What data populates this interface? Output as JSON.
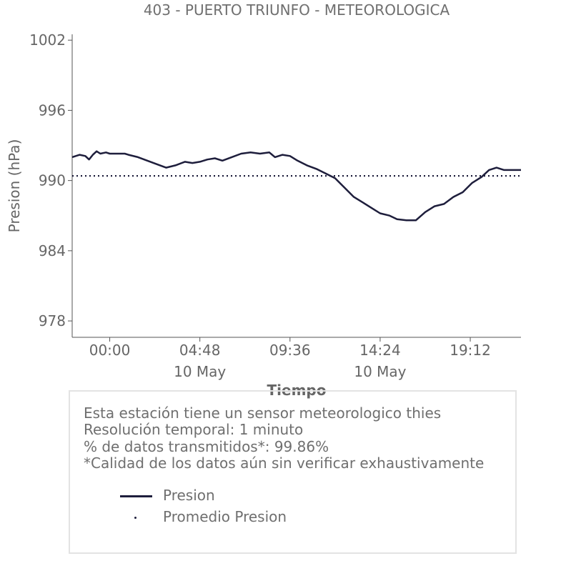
{
  "title": "403 - PUERTO TRIUNFO - METEOROLOGICA",
  "info": {
    "line1": "Esta estación tiene un sensor meteorologico thies",
    "line2": "Resolución temporal: 1 minuto",
    "line3": "% de datos transmitidos*: 99.86%",
    "line4": "*Calidad de los datos aún sin verificar exhaustivamente"
  },
  "legend": {
    "series_label": "Presion",
    "mean_label": "Promedio Presion"
  },
  "colors": {
    "line": "#1e1e3c",
    "axis": "#555555",
    "text": "#666666"
  },
  "chart_data": {
    "type": "line",
    "title": "403 - PUERTO TRIUNFO - METEOROLOGICA",
    "xlabel": "Tiempo",
    "ylabel": "Presion (hPa)",
    "xlim": [
      -2.0,
      21.9
    ],
    "ylim": [
      976.6,
      1002.5
    ],
    "x_unit": "hours",
    "xticks": [
      {
        "value": 0.0,
        "label": "00:00",
        "sublabel": ""
      },
      {
        "value": 4.8,
        "label": "04:48",
        "sublabel": "10 May"
      },
      {
        "value": 9.6,
        "label": "09:36",
        "sublabel": ""
      },
      {
        "value": 14.4,
        "label": "14:24",
        "sublabel": "10 May"
      },
      {
        "value": 19.2,
        "label": "19:12",
        "sublabel": ""
      }
    ],
    "yticks": [
      978,
      984,
      990,
      996,
      1002
    ],
    "grid": false,
    "series": [
      {
        "name": "Presion",
        "style": "solid",
        "x": [
          -2.0,
          -1.6,
          -1.3,
          -1.1,
          -0.9,
          -0.7,
          -0.5,
          -0.2,
          0.0,
          0.2,
          0.5,
          0.8,
          1.0,
          1.5,
          2.0,
          2.5,
          3.0,
          3.5,
          4.0,
          4.4,
          4.8,
          5.2,
          5.6,
          6.0,
          6.5,
          7.0,
          7.5,
          8.0,
          8.5,
          8.8,
          9.2,
          9.6,
          10.0,
          10.5,
          11.0,
          11.5,
          12.0,
          12.5,
          13.0,
          13.5,
          14.0,
          14.4,
          14.9,
          15.3,
          15.8,
          16.3,
          16.8,
          17.3,
          17.8,
          18.3,
          18.8,
          19.3,
          19.8,
          20.2,
          20.6,
          21.0,
          21.5,
          21.9
        ],
        "y": [
          992.0,
          992.2,
          992.1,
          991.8,
          992.2,
          992.5,
          992.3,
          992.4,
          992.3,
          992.3,
          992.3,
          992.3,
          992.2,
          992.0,
          991.7,
          991.4,
          991.1,
          991.3,
          991.6,
          991.5,
          991.6,
          991.8,
          991.9,
          991.7,
          992.0,
          992.3,
          992.4,
          992.3,
          992.4,
          992.0,
          992.2,
          992.1,
          991.7,
          991.3,
          991.0,
          990.6,
          990.2,
          989.4,
          988.6,
          988.1,
          987.6,
          987.2,
          987.0,
          986.7,
          986.6,
          986.6,
          987.3,
          987.8,
          988.0,
          988.6,
          989.0,
          989.8,
          990.3,
          990.9,
          991.1,
          990.9,
          990.9,
          990.9
        ]
      },
      {
        "name": "Promedio Presion",
        "style": "dotted",
        "x": [
          -2.0,
          21.9
        ],
        "y": [
          990.4,
          990.4
        ]
      }
    ]
  }
}
